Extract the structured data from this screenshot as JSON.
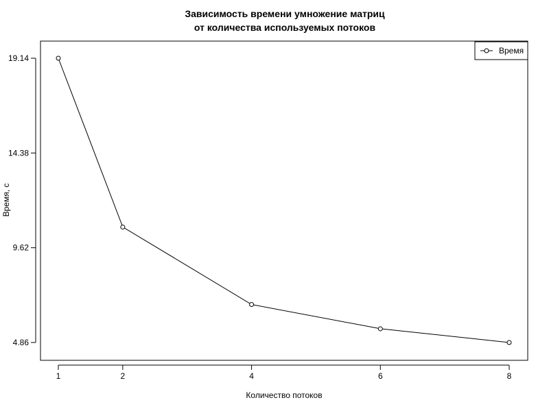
{
  "chart_data": {
    "type": "line",
    "title": [
      "Зависимость времени умножение матриц",
      "от количества используемых потоков"
    ],
    "xlabel": "Количество потоков",
    "ylabel": "Время, с",
    "x": [
      1,
      2,
      4,
      6,
      8
    ],
    "x_tick_labels": [
      "1",
      "2",
      "4",
      "6",
      "8"
    ],
    "y_ticks": [
      4.86,
      9.62,
      14.38,
      19.14
    ],
    "y_tick_labels": [
      "4.86",
      "9.62",
      "14.38",
      "19.14"
    ],
    "series": [
      {
        "name": "Время",
        "values": [
          19.14,
          10.66,
          6.77,
          5.55,
          4.86
        ],
        "color": "#000000"
      }
    ],
    "legend": {
      "entries": [
        "Время"
      ],
      "position": "top-right"
    },
    "grid": false
  }
}
